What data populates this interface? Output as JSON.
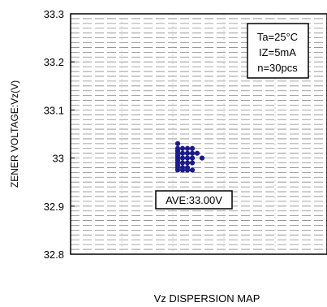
{
  "chart_data": {
    "type": "scatter",
    "title": "",
    "xlabel": "Vz DISPERSION MAP",
    "ylabel": "ZENER VOLTAGE:Vz(V)",
    "ylim": [
      32.8,
      33.3
    ],
    "yticks": [
      "32.8",
      "32.9",
      "33",
      "33.1",
      "33.2",
      "33.3"
    ],
    "grid": true,
    "legend": {
      "placement": "top-right",
      "lines": [
        "Ta=25°C",
        "IZ=5mA",
        "n=30pcs"
      ]
    },
    "annotation": "AVE:33.00V",
    "marker_color": "#1a1a8c",
    "points": [
      {
        "col": 0,
        "y": 33.03
      },
      {
        "col": 0,
        "y": 33.02
      },
      {
        "col": 0,
        "y": 33.015
      },
      {
        "col": 0,
        "y": 33.01
      },
      {
        "col": 0,
        "y": 33.005
      },
      {
        "col": 0,
        "y": 33.0
      },
      {
        "col": 0,
        "y": 32.995
      },
      {
        "col": 0,
        "y": 32.99
      },
      {
        "col": 0,
        "y": 32.985
      },
      {
        "col": 0,
        "y": 32.98
      },
      {
        "col": 0,
        "y": 32.975
      },
      {
        "col": 1,
        "y": 33.02
      },
      {
        "col": 1,
        "y": 33.01
      },
      {
        "col": 1,
        "y": 33.0
      },
      {
        "col": 1,
        "y": 32.99
      },
      {
        "col": 1,
        "y": 32.98
      },
      {
        "col": 1,
        "y": 32.975
      },
      {
        "col": 2,
        "y": 33.02
      },
      {
        "col": 2,
        "y": 33.01
      },
      {
        "col": 2,
        "y": 33.0
      },
      {
        "col": 2,
        "y": 32.99
      },
      {
        "col": 2,
        "y": 32.98
      },
      {
        "col": 2,
        "y": 32.975
      },
      {
        "col": 3,
        "y": 33.02
      },
      {
        "col": 3,
        "y": 33.01
      },
      {
        "col": 3,
        "y": 33.0
      },
      {
        "col": 3,
        "y": 32.99
      },
      {
        "col": 3,
        "y": 32.975
      },
      {
        "col": 4,
        "y": 33.01
      },
      {
        "col": 5,
        "y": 33.0
      }
    ]
  }
}
